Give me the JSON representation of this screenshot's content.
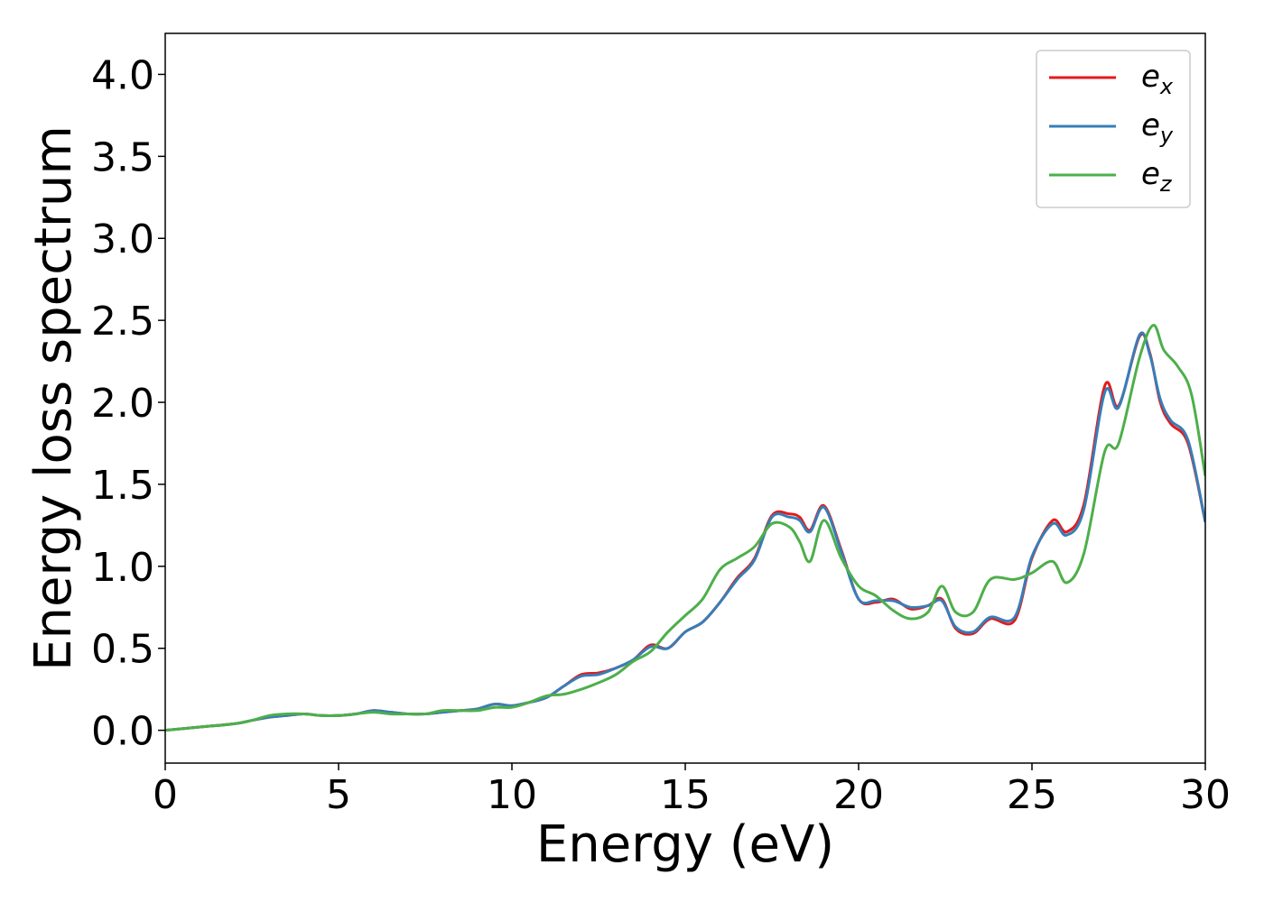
{
  "chart_data": {
    "type": "line",
    "title": "",
    "xlabel": "Energy (eV)",
    "ylabel": "Energy loss spectrum",
    "xlim": [
      0,
      30
    ],
    "ylim": [
      -0.2,
      4.25
    ],
    "xticks": [
      0,
      5,
      10,
      15,
      20,
      25,
      30
    ],
    "xtick_labels": [
      "0",
      "5",
      "10",
      "15",
      "20",
      "25",
      "30"
    ],
    "yticks": [
      0.0,
      0.5,
      1.0,
      1.5,
      2.0,
      2.5,
      3.0,
      3.5,
      4.0
    ],
    "ytick_labels": [
      "0.0",
      "0.5",
      "1.0",
      "1.5",
      "2.0",
      "2.5",
      "3.0",
      "3.5",
      "4.0"
    ],
    "grid": false,
    "legend_position": "top-right",
    "series": [
      {
        "name": "e_x",
        "label_base": "e",
        "label_sub": "x",
        "color": "#e41a1c",
        "x": [
          0,
          1,
          2,
          2.5,
          3,
          3.5,
          4,
          4.5,
          5,
          5.5,
          6,
          6.5,
          7,
          7.5,
          8,
          8.5,
          9,
          9.5,
          10,
          10.5,
          11,
          11.5,
          12,
          12.5,
          13,
          13.5,
          14,
          14.5,
          15,
          15.5,
          16,
          16.5,
          17,
          17.5,
          18,
          18.3,
          18.6,
          19,
          19.5,
          20,
          20.5,
          21,
          21.5,
          22,
          22.4,
          22.8,
          23.3,
          23.8,
          24.5,
          25,
          25.6,
          26,
          26.5,
          27.1,
          27.5,
          28.1,
          28.4,
          28.7,
          29,
          29.5,
          30
        ],
        "y": [
          0.0,
          0.02,
          0.04,
          0.06,
          0.08,
          0.09,
          0.1,
          0.09,
          0.09,
          0.1,
          0.12,
          0.11,
          0.1,
          0.1,
          0.11,
          0.12,
          0.13,
          0.16,
          0.15,
          0.17,
          0.2,
          0.27,
          0.34,
          0.35,
          0.38,
          0.43,
          0.52,
          0.5,
          0.6,
          0.66,
          0.78,
          0.93,
          1.05,
          1.31,
          1.32,
          1.3,
          1.22,
          1.37,
          1.1,
          0.8,
          0.78,
          0.8,
          0.74,
          0.76,
          0.8,
          0.62,
          0.59,
          0.68,
          0.67,
          1.05,
          1.28,
          1.21,
          1.38,
          2.1,
          1.98,
          2.4,
          2.3,
          2.0,
          1.87,
          1.75,
          1.27
        ]
      },
      {
        "name": "e_y",
        "label_base": "e",
        "label_sub": "y",
        "color": "#377eb8",
        "x": [
          0,
          1,
          2,
          2.5,
          3,
          3.5,
          4,
          4.5,
          5,
          5.5,
          6,
          6.5,
          7,
          7.5,
          8,
          8.5,
          9,
          9.5,
          10,
          10.5,
          11,
          11.5,
          12,
          12.5,
          13,
          13.5,
          14,
          14.5,
          15,
          15.5,
          16,
          16.5,
          17,
          17.5,
          18,
          18.3,
          18.6,
          19,
          19.5,
          20,
          20.5,
          21,
          21.5,
          22,
          22.4,
          22.8,
          23.3,
          23.8,
          24.5,
          25,
          25.6,
          26,
          26.5,
          27.1,
          27.5,
          28.1,
          28.4,
          28.7,
          29,
          29.5,
          30
        ],
        "y": [
          0.0,
          0.02,
          0.04,
          0.06,
          0.08,
          0.09,
          0.1,
          0.09,
          0.09,
          0.1,
          0.12,
          0.11,
          0.1,
          0.1,
          0.11,
          0.12,
          0.13,
          0.16,
          0.15,
          0.17,
          0.2,
          0.27,
          0.33,
          0.34,
          0.38,
          0.43,
          0.51,
          0.5,
          0.6,
          0.66,
          0.78,
          0.92,
          1.04,
          1.3,
          1.3,
          1.28,
          1.21,
          1.36,
          1.09,
          0.8,
          0.79,
          0.79,
          0.75,
          0.76,
          0.79,
          0.63,
          0.6,
          0.69,
          0.69,
          1.06,
          1.26,
          1.19,
          1.35,
          2.06,
          1.97,
          2.41,
          2.29,
          2.02,
          1.89,
          1.77,
          1.27
        ]
      },
      {
        "name": "e_z",
        "label_base": "e",
        "label_sub": "z",
        "color": "#4daf4a",
        "x": [
          0,
          1,
          2,
          2.5,
          3,
          3.5,
          4,
          4.5,
          5,
          5.5,
          6,
          6.5,
          7,
          7.5,
          8,
          8.5,
          9,
          9.5,
          10,
          10.5,
          11,
          11.5,
          12,
          12.5,
          13,
          13.5,
          14,
          14.5,
          15,
          15.5,
          16,
          16.5,
          17,
          17.5,
          18,
          18.3,
          18.6,
          19,
          19.5,
          20,
          20.5,
          21,
          21.5,
          22,
          22.4,
          22.8,
          23.3,
          23.8,
          24.5,
          25,
          25.6,
          26,
          26.5,
          27.1,
          27.5,
          28.1,
          28.5,
          28.8,
          29.2,
          29.6,
          30
        ],
        "y": [
          0.0,
          0.02,
          0.04,
          0.06,
          0.09,
          0.1,
          0.1,
          0.09,
          0.09,
          0.1,
          0.11,
          0.1,
          0.1,
          0.1,
          0.12,
          0.12,
          0.12,
          0.14,
          0.14,
          0.17,
          0.21,
          0.22,
          0.25,
          0.29,
          0.34,
          0.42,
          0.48,
          0.6,
          0.7,
          0.8,
          0.98,
          1.05,
          1.12,
          1.26,
          1.24,
          1.15,
          1.03,
          1.28,
          1.05,
          0.88,
          0.82,
          0.73,
          0.68,
          0.72,
          0.88,
          0.72,
          0.72,
          0.92,
          0.92,
          0.96,
          1.03,
          0.9,
          1.08,
          1.7,
          1.75,
          2.27,
          2.47,
          2.32,
          2.22,
          2.05,
          1.55
        ]
      }
    ]
  }
}
